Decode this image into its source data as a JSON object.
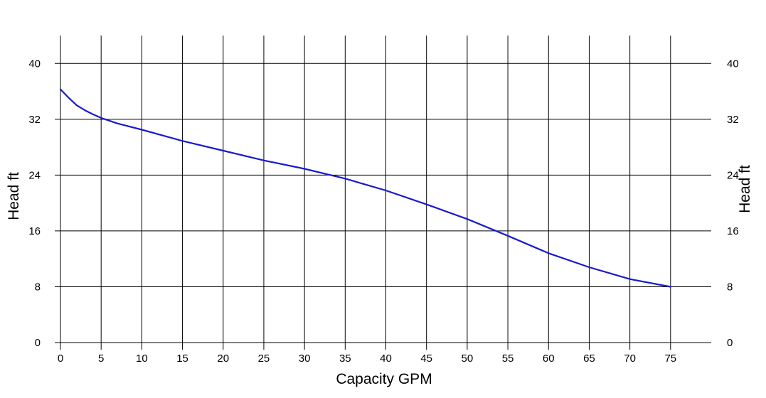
{
  "colors": {
    "series": "#1a1acc",
    "grid": "#000000",
    "background": "#ffffff"
  },
  "chart_data": {
    "type": "line",
    "title": "",
    "xlabel": "Capacity GPM",
    "ylabel": "Head ft",
    "ylabel_right": "Head ft",
    "xlim": [
      0,
      80
    ],
    "ylim": [
      0,
      40
    ],
    "x_ticks": [
      0,
      5,
      10,
      15,
      20,
      25,
      30,
      35,
      40,
      45,
      50,
      55,
      60,
      65,
      70,
      75
    ],
    "y_ticks": [
      0,
      8,
      16,
      24,
      32,
      40
    ],
    "grid": true,
    "series": [
      {
        "x": [
          0,
          1,
          2,
          3,
          4,
          5,
          7,
          10,
          15,
          20,
          25,
          30,
          35,
          40,
          45,
          50,
          55,
          60,
          65,
          70,
          75
        ],
        "y": [
          36.3,
          35.1,
          34.0,
          33.3,
          32.7,
          32.2,
          31.4,
          30.5,
          28.9,
          27.5,
          26.1,
          24.9,
          23.5,
          21.8,
          19.8,
          17.7,
          15.3,
          12.8,
          10.8,
          9.1,
          8.0
        ]
      }
    ]
  }
}
